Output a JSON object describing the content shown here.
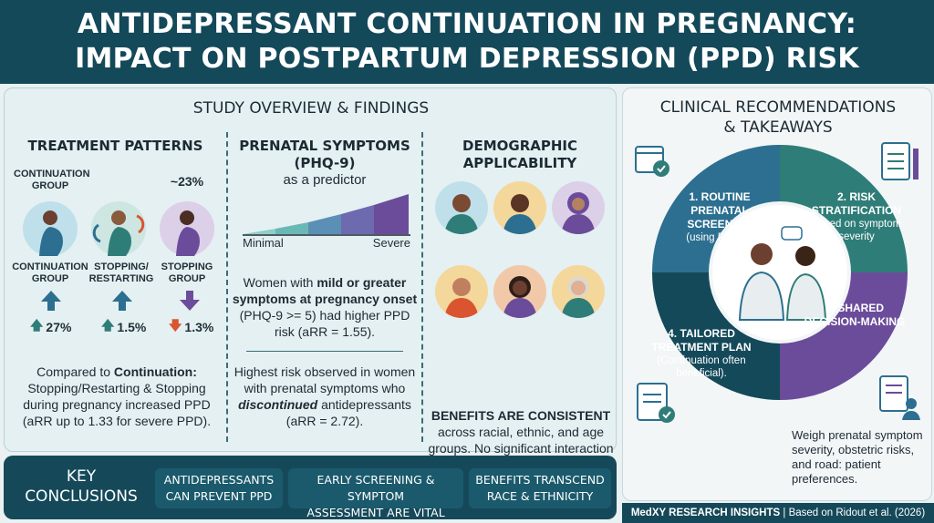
{
  "header": {
    "title_line1": "ANTIDEPRESSANT CONTINUATION IN PREGNANCY:",
    "title_line2": "IMPACT ON POSTPARTUM DEPRESSION (PPD) RISK"
  },
  "overview": {
    "title": "STUDY OVERVIEW & FINDINGS",
    "treatment": {
      "title": "TREATMENT PATTERNS",
      "continuation_top": "CONTINUATION GROUP",
      "approx": "~23%",
      "groups": [
        {
          "label": "CONTINUATION GROUP",
          "stat": "27%",
          "dir": "up",
          "color": "#2f7d78"
        },
        {
          "label": "STOPPING/ RESTARTING",
          "stat": "1.5%",
          "dir": "up",
          "color": "#2f7d78"
        },
        {
          "label": "STOPPING GROUP",
          "stat": "1.3%",
          "dir": "down",
          "color": "#d9552f"
        }
      ],
      "compared_prefix": "Compared to ",
      "compared_bold": "Continuation:",
      "compared_rest": "Stopping/Restarting & Stopping during pregnancy increased PPD (aRR up to 1.33 for severe PPD)."
    },
    "symptoms": {
      "title_line1": "PRENATAL SYMPTOMS",
      "title_line2": "(PHQ-9)",
      "subtitle": "as a predictor",
      "scale_min": "Minimal",
      "scale_max": "Severe",
      "p1_a": "Women with ",
      "p1_bold": "mild or greater symptoms at pregnancy onset",
      "p1_b": " (PHQ-9 >= 5) had higher PPD risk (aRR = 1.55).",
      "p2_a": "Highest risk observed in women with prenatal symptoms who ",
      "p2_bold": "discontinued",
      "p2_b": " antidepressants (aRR = 2.72)."
    },
    "demographic": {
      "title_line1": "DEMOGRAPHIC",
      "title_line2": "APPLICABILITY",
      "bold": "BENEFITS ARE CONSISTENT",
      "rest": "across racial, ethnic, and age groups. No significant interaction effects detected."
    }
  },
  "key": {
    "title_line1": "KEY",
    "title_line2": "CONCLUSIONS",
    "items": [
      {
        "l1": "ANTIDEPRESSANTS",
        "l2": "CAN PREVENT PPD"
      },
      {
        "l1": "EARLY SCREENING & SYMPTOM",
        "l2": "ASSESSMENT ARE VITAL"
      },
      {
        "l1": "BENEFITS TRANSCEND",
        "l2": "RACE & ETHNICITY"
      }
    ]
  },
  "recommendations": {
    "title_line1": "CLINICAL RECOMMENDATIONS",
    "title_line2": "& TAKEAWAYS",
    "s1_title": "1. ROUTINE PRENATAL SCREENING",
    "s1_sub": "(using PHQ-9)",
    "s2_title": "2. RISK STRATIFICATION",
    "s2_sub": "Based on symptom severity",
    "s3_title": "3. SHARED DECISION-MAKING",
    "s4_title": "4. TAILORED TREATMENT PLAN",
    "s4_sub": "(Continuation often beneficial).",
    "weigh": "Weigh prenatal symptom severity, obstetric risks, and road: patient preferences."
  },
  "footer": {
    "brand": "MedXY RESEARCH INSIGHTS",
    "source": " | Based on Ridout et al. (2026)"
  },
  "colors": {
    "navy": "#14495a",
    "teal": "#2f7d78",
    "blue": "#2c6f90",
    "purple": "#6b4c9a",
    "orange": "#d9552f"
  }
}
